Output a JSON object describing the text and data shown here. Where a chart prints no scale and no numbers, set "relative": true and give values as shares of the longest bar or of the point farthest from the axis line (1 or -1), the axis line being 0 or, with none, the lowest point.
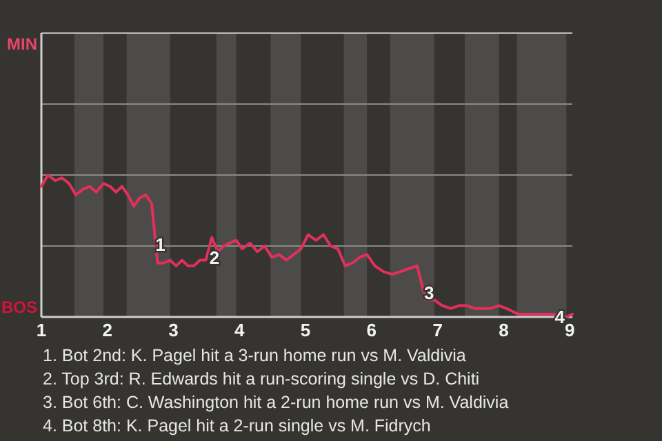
{
  "chart_data": {
    "type": "line",
    "relative": true,
    "x": [
      1,
      1.1,
      1.21,
      1.31,
      1.42,
      1.52,
      1.63,
      1.73,
      1.83,
      1.94,
      2.04,
      2.13,
      2.22,
      2.31,
      2.4,
      2.49,
      2.58,
      2.67,
      2.76,
      2.85,
      2.95,
      3.04,
      3.13,
      3.22,
      3.31,
      3.4,
      3.49,
      3.58,
      3.67,
      3.76,
      3.85,
      3.95,
      4.04,
      4.16,
      4.27,
      4.38,
      4.49,
      4.6,
      4.71,
      4.82,
      4.93,
      5.04,
      5.16,
      5.27,
      5.38,
      5.49,
      5.6,
      5.71,
      5.82,
      5.93,
      6.05,
      6.18,
      6.31,
      6.44,
      6.56,
      6.69,
      6.82,
      6.95,
      7.07,
      7.2,
      7.32,
      7.44,
      7.56,
      7.68,
      7.8,
      7.93,
      8.04,
      8.13,
      8.22,
      8.31,
      8.4,
      8.49,
      8.58,
      8.67,
      8.76,
      8.85,
      8.95,
      9.04
    ],
    "series": [
      {
        "color": "#e2305a",
        "values": [
          0.92,
          1.0,
          0.96,
          0.98,
          0.94,
          0.86,
          0.9,
          0.92,
          0.88,
          0.94,
          0.92,
          0.88,
          0.92,
          0.86,
          0.78,
          0.84,
          0.86,
          0.8,
          0.38,
          0.38,
          0.4,
          0.36,
          0.4,
          0.36,
          0.36,
          0.4,
          0.4,
          0.56,
          0.46,
          0.5,
          0.52,
          0.54,
          0.48,
          0.52,
          0.46,
          0.5,
          0.42,
          0.44,
          0.4,
          0.44,
          0.48,
          0.58,
          0.54,
          0.58,
          0.5,
          0.48,
          0.36,
          0.38,
          0.42,
          0.44,
          0.36,
          0.32,
          0.3,
          0.32,
          0.34,
          0.36,
          0.12,
          0.12,
          0.08,
          0.06,
          0.08,
          0.08,
          0.06,
          0.06,
          0.06,
          0.08,
          0.06,
          0.04,
          0.02,
          0.02,
          0.02,
          0.02,
          0.02,
          0.02,
          0.02,
          0,
          0,
          0.02
        ]
      }
    ],
    "xlim": [
      1,
      9.04
    ],
    "xticks": [
      1,
      2,
      3,
      4,
      5,
      6,
      7,
      8,
      9
    ],
    "ref_lines": [
      {
        "axis": "y",
        "value": 0.5,
        "color": "#8a8986"
      },
      {
        "axis": "y",
        "value": 1,
        "color": "#8a8986"
      },
      {
        "axis": "y",
        "value": 1.5,
        "color": "#8a8986"
      },
      {
        "axis": "y",
        "value": 2,
        "color": "#bdbdbd"
      }
    ],
    "bands": [
      {
        "axis": "x",
        "from": 1.5,
        "to": 1.94,
        "color": "#4c4b49"
      },
      {
        "axis": "x",
        "from": 2.29,
        "to": 2.95,
        "color": "#4c4b49"
      },
      {
        "axis": "x",
        "from": 3.65,
        "to": 3.95,
        "color": "#4c4b49"
      },
      {
        "axis": "x",
        "from": 4.47,
        "to": 4.93,
        "color": "#4c4b49"
      },
      {
        "axis": "x",
        "from": 5.58,
        "to": 5.93,
        "color": "#4c4b49"
      },
      {
        "axis": "x",
        "from": 6.28,
        "to": 6.95,
        "color": "#4c4b49"
      },
      {
        "axis": "x",
        "from": 7.41,
        "to": 7.93,
        "color": "#4c4b49"
      },
      {
        "axis": "x",
        "from": 8.2,
        "to": 8.95,
        "color": "#4c4b49"
      }
    ],
    "annotations": [
      "MIN",
      "BOS",
      {
        "text": "1",
        "x": 2.8,
        "y": 0.51
      },
      {
        "text": "2",
        "x": 3.62,
        "y": 0.42
      },
      {
        "text": "3",
        "x": 6.87,
        "y": 0.17
      },
      {
        "text": "4",
        "x": 8.85,
        "y": 0
      },
      "1. Bot 2nd: K. Pagel hit a 3-run home run vs M. Valdivia",
      "2. Top 3rd: R. Edwards hit a run-scoring single vs D. Chiti",
      "3. Bot 6th: C. Washington hit a 2-run home run vs M. Valdivia",
      "4. Bot 8th: K. Pagel hit a 2-run single vs M. Fidrych"
    ]
  }
}
